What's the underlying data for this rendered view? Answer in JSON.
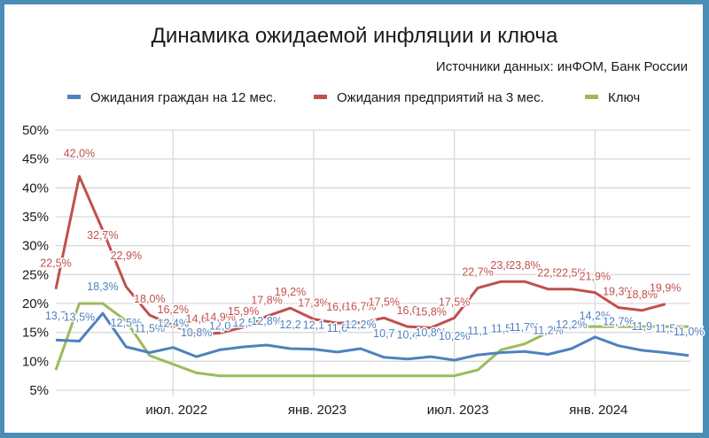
{
  "chart_data": {
    "type": "line",
    "title": "Динамика ожидаемой инфляции и ключа",
    "subtitle": "Источники данных: инФОМ, Банк России",
    "xlabel": "",
    "ylabel": "",
    "ylim": [
      5,
      50
    ],
    "yticks": [
      "5%",
      "10%",
      "15%",
      "20%",
      "25%",
      "30%",
      "35%",
      "40%",
      "45%",
      "50%"
    ],
    "xtick_labels": [
      {
        "label": "июл. 2022",
        "index": 5
      },
      {
        "label": "янв. 2023",
        "index": 11
      },
      {
        "label": "июл. 2023",
        "index": 17
      },
      {
        "label": "янв. 2024",
        "index": 23
      }
    ],
    "grid": true,
    "legend_position": "top",
    "x": [
      "2022-02",
      "2022-03",
      "2022-04",
      "2022-05",
      "2022-06",
      "2022-07",
      "2022-08",
      "2022-09",
      "2022-10",
      "2022-11",
      "2022-12",
      "2023-01",
      "2023-02",
      "2023-03",
      "2023-04",
      "2023-05",
      "2023-06",
      "2023-07",
      "2023-08",
      "2023-09",
      "2023-10",
      "2023-11",
      "2023-12",
      "2024-01",
      "2024-02",
      "2024-03",
      "2024-04",
      "2024-05"
    ],
    "series": [
      {
        "name": "Ожидания граждан на 12 мес.",
        "color": "#4F81BD",
        "values": [
          13.7,
          13.5,
          18.3,
          12.5,
          11.5,
          12.4,
          10.8,
          12.0,
          12.5,
          12.8,
          12.2,
          12.1,
          11.6,
          12.2,
          10.7,
          10.4,
          10.8,
          10.2,
          11.1,
          11.5,
          11.7,
          11.2,
          12.2,
          14.2,
          12.7,
          11.9,
          11.5,
          11.0
        ],
        "labels": [
          "13,7",
          "13,5%",
          "18,3%",
          "12,5%",
          "11,5%",
          "12,4%",
          "10,8%",
          "12,0",
          "12,5",
          "12,8%",
          "12,2",
          "12,1",
          "11,6",
          "12,2%",
          "10,7",
          "10,4",
          "10,8%",
          "10,2%",
          "11,1",
          "11,5",
          "11,7%",
          "11,2%",
          "12,2%",
          "14,2%",
          "12,7%",
          "11,9",
          "11,5",
          "11,0%"
        ]
      },
      {
        "name": "Ожидания предприятий на 3 мес.",
        "color": "#C0504D",
        "values": [
          22.5,
          42.0,
          32.7,
          22.9,
          18.0,
          16.2,
          14.6,
          14.9,
          15.9,
          17.8,
          19.2,
          17.3,
          16.6,
          16.7,
          17.5,
          16.0,
          15.8,
          17.5,
          22.7,
          23.8,
          23.8,
          22.5,
          22.5,
          21.9,
          19.3,
          18.8,
          19.9,
          null
        ],
        "labels": [
          "22,5%",
          "42,0%",
          "32,7%",
          "22,9%",
          "18,0%",
          "16,2%",
          "14,6",
          "14,9%",
          "15,9%",
          "17,8%",
          "19,2%",
          "17,3%",
          "16,6",
          "16,7%",
          "17,5%",
          "16,0",
          "15,8%",
          "17,5%",
          "22,7%",
          "23,8",
          "23,8%",
          "22,5",
          "22,5%",
          "21,9%",
          "19,3%",
          "18,8%",
          "19,9%",
          ""
        ]
      },
      {
        "name": "Ключ",
        "color": "#9BBB59",
        "values": [
          8.5,
          20.0,
          20.0,
          17.0,
          11.0,
          9.5,
          8.0,
          7.5,
          7.5,
          7.5,
          7.5,
          7.5,
          7.5,
          7.5,
          7.5,
          7.5,
          7.5,
          7.5,
          8.5,
          12.0,
          13.0,
          15.0,
          16.0,
          16.0,
          16.0,
          16.0,
          16.0,
          16.0
        ]
      }
    ]
  },
  "header": {
    "title": "Динамика ожидаемой инфляции и ключа",
    "source": "Источники данных: инФОМ, Банк России"
  },
  "legend": {
    "items": [
      {
        "label": "Ожидания граждан на 12 мес.",
        "color": "#4F81BD"
      },
      {
        "label": "Ожидания предприятий на 3 мес.",
        "color": "#C0504D"
      },
      {
        "label": "Ключ",
        "color": "#9BBB59"
      }
    ]
  },
  "colors": {
    "frame": "#4A8DB7",
    "grid": "#D9D9D9"
  }
}
